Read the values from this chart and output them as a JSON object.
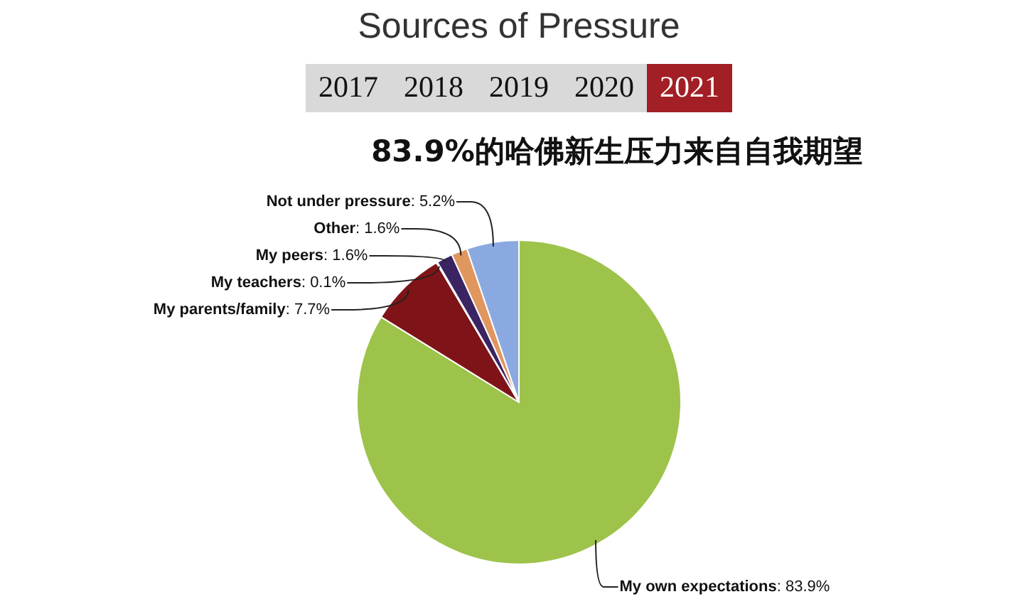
{
  "chart_data": {
    "type": "pie",
    "title": "Sources of Pressure",
    "subtitle": "83.9%的哈佛新生压力来自自我期望",
    "annotations": [
      "2017",
      "2018",
      "2019",
      "2020",
      "2021"
    ],
    "categories": [
      "My own expectations",
      "My parents/family",
      "My teachers",
      "My peers",
      "Other",
      "Not under pressure"
    ],
    "values": [
      83.9,
      7.7,
      0.1,
      1.6,
      1.6,
      5.2
    ],
    "colors": [
      "#9dc34b",
      "#7e1417",
      "#e9c4c4",
      "#3b2462",
      "#e0965f",
      "#8ba9e1"
    ],
    "value_labels": [
      ": 83.9%",
      ": 7.7%",
      ": 0.1%",
      ": 1.6%",
      ": 1.6%",
      ": 5.2%"
    ]
  }
}
